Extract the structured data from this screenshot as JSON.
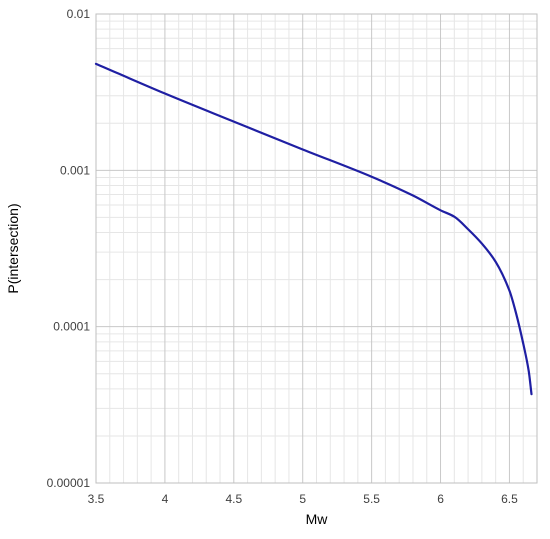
{
  "chart_data": {
    "type": "line",
    "xlabel": "Mw",
    "ylabel": "P(intersection)",
    "xlim": [
      3.5,
      6.7
    ],
    "ylim": [
      1e-05,
      0.01
    ],
    "y_scale": "log",
    "x_tick_labels": [
      "3.5",
      "4",
      "4.5",
      "5",
      "5.5",
      "6",
      "6.5"
    ],
    "y_tick_labels": [
      "0.01",
      "0.001",
      "0.0001",
      "0.00001"
    ],
    "grid": true,
    "series": [
      {
        "color": "#1f1fa3",
        "x": [
          3.5,
          4.0,
          4.5,
          5.0,
          5.5,
          5.8,
          6.0,
          6.1,
          6.2,
          6.3,
          6.4,
          6.5,
          6.55,
          6.6,
          6.64,
          6.66
        ],
        "y": [
          0.0048,
          0.0031,
          0.00205,
          0.00136,
          0.00091,
          0.00069,
          0.000555,
          0.000505,
          0.00042,
          0.00034,
          0.00026,
          0.00017,
          0.00012,
          7.8e-05,
          5.2e-05,
          3.7e-05
        ]
      }
    ]
  },
  "colors": {
    "major_grid": "#c8c8c8",
    "minor_grid": "#e6e6e6",
    "axis": "#bfbfbf"
  }
}
